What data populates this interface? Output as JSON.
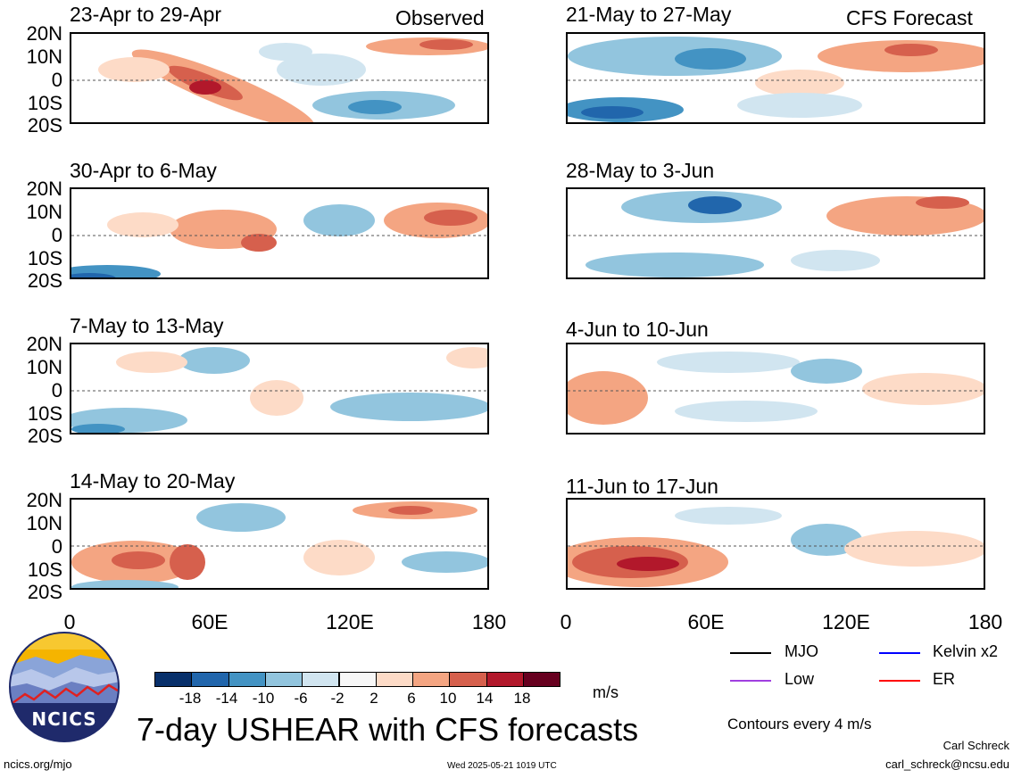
{
  "panels": [
    {
      "title": "23-Apr to 29-Apr",
      "tag": "Observed"
    },
    {
      "title": "21-May to 27-May",
      "tag": "CFS Forecast"
    },
    {
      "title": "30-Apr to 6-May",
      "tag": ""
    },
    {
      "title": "28-May to 3-Jun",
      "tag": ""
    },
    {
      "title": "7-May to 13-May",
      "tag": ""
    },
    {
      "title": "4-Jun to 10-Jun",
      "tag": ""
    },
    {
      "title": "14-May to 20-May",
      "tag": ""
    },
    {
      "title": "11-Jun to 17-Jun",
      "tag": ""
    }
  ],
  "lat_labels": [
    "20N",
    "10N",
    "0",
    "10S",
    "20S"
  ],
  "lon_labels": [
    "0",
    "60E",
    "120E",
    "180"
  ],
  "colorbar": {
    "labels": [
      "-18",
      "-14",
      "-10",
      "-6",
      "-2",
      "2",
      "6",
      "10",
      "14",
      "18"
    ],
    "colors": [
      "#08306b",
      "#2166ac",
      "#4393c3",
      "#92c5de",
      "#d1e5f0",
      "#f7f7f7",
      "#fddbc7",
      "#f4a582",
      "#d6604d",
      "#b2182b",
      "#67001f"
    ],
    "unit": "m/s"
  },
  "legend": {
    "items": [
      {
        "label": "MJO",
        "color": "#000000"
      },
      {
        "label": "Kelvin x2",
        "color": "#0000ff"
      },
      {
        "label": "Low",
        "color": "#a040e0"
      },
      {
        "label": "ER",
        "color": "#ff0000"
      }
    ],
    "contours_note": "Contours every 4 m/s"
  },
  "main_title": "7-day USHEAR with CFS forecasts",
  "logo_text": "NCICS",
  "footer": {
    "url": "ncics.org/mjo",
    "timestamp": "Wed 2025-05-21 1019 UTC",
    "author": "Carl Schreck",
    "email": "carl_schreck@ncsu.edu"
  }
}
